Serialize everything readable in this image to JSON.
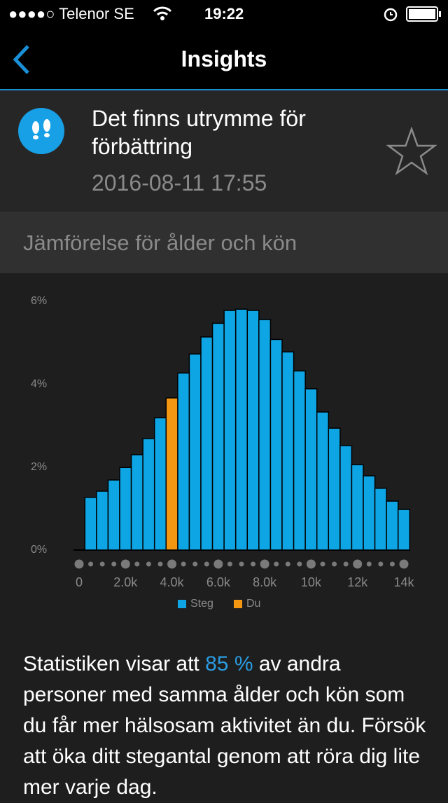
{
  "status": {
    "carrier": "●●●●○ Telenor SE",
    "time": "19:22"
  },
  "nav": {
    "title": "Insights"
  },
  "insight": {
    "title": "Det finns utrymme för förbättring",
    "date": "2016-08-11 17:55"
  },
  "section": {
    "title": "Jämförelse för ålder och kön"
  },
  "chart_data": {
    "type": "bar",
    "x": [
      500,
      1000,
      1500,
      2000,
      2500,
      3000,
      3500,
      4000,
      4500,
      5000,
      5500,
      6000,
      6500,
      7000,
      7500,
      8000,
      8500,
      9000,
      9500,
      10000,
      10500,
      11000,
      11500,
      12000,
      12500,
      13000,
      13500,
      14000
    ],
    "series": [
      {
        "name": "Steg",
        "color": "#0ea5e4",
        "values": [
          1.27,
          1.42,
          1.69,
          1.99,
          2.3,
          2.69,
          3.19,
          null,
          4.27,
          4.73,
          5.14,
          5.47,
          5.78,
          5.81,
          5.78,
          5.56,
          5.08,
          4.78,
          4.32,
          3.89,
          3.33,
          2.94,
          2.52,
          2.06,
          1.79,
          1.49,
          1.18,
          0.98
        ]
      },
      {
        "name": "Du",
        "color": "#f39612",
        "values": [
          null,
          null,
          null,
          null,
          null,
          null,
          null,
          3.67,
          null,
          null,
          null,
          null,
          null,
          null,
          null,
          null,
          null,
          null,
          null,
          null,
          null,
          null,
          null,
          null,
          null,
          null,
          null,
          null
        ]
      }
    ],
    "xlim": [
      0,
      14000
    ],
    "xticks": [
      0,
      {
        "value": 2000,
        "label": "2.0k"
      },
      {
        "value": 4000,
        "label": "4.0k"
      },
      {
        "value": 6000,
        "label": "6.0k"
      },
      {
        "value": 8000,
        "label": "8.0k"
      },
      {
        "value": 10000,
        "label": "10k"
      },
      {
        "value": 12000,
        "label": "12k"
      },
      {
        "value": 14000,
        "label": "14k"
      }
    ],
    "ylim": [
      0,
      6
    ],
    "yticks": [
      {
        "value": 0,
        "label": "0%"
      },
      {
        "value": 2,
        "label": "2%"
      },
      {
        "value": 4,
        "label": "4%"
      },
      {
        "value": 6,
        "label": "6%"
      }
    ],
    "bar_width": 500,
    "grid": false,
    "legend": "bottom"
  },
  "text": {
    "before": "Statistiken visar att ",
    "highlight": "85 %",
    "after": " av andra personer med samma ålder och kön som du får mer hälsosam aktivitet än du. Försök att öka ditt stegantal genom att röra dig lite mer varje dag."
  }
}
